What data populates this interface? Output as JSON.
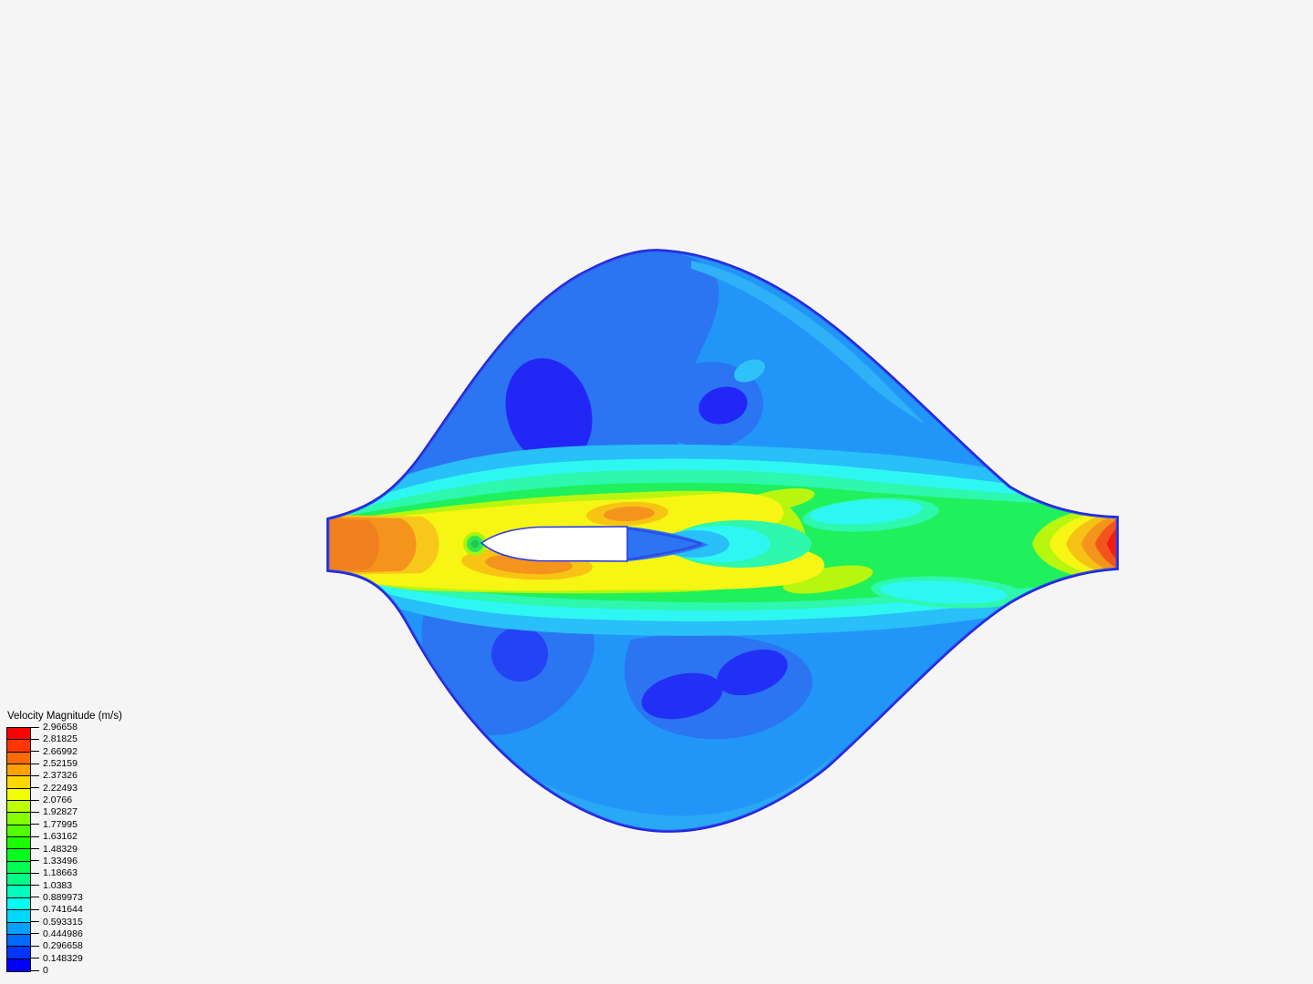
{
  "page": {
    "background_color": "#f5f5f6",
    "kind": "CFD post-processing contour view"
  },
  "legend": {
    "title": "Velocity Magnitude (m/s)",
    "labels_top_to_bottom": [
      "2.96658",
      "2.81825",
      "2.66992",
      "2.52159",
      "2.37326",
      "2.22493",
      "2.0766",
      "1.92827",
      "1.77995",
      "1.63162",
      "1.48329",
      "1.33496",
      "1.18663",
      "1.0383",
      "0.889973",
      "0.741644",
      "0.593315",
      "0.444986",
      "0.296658",
      "0.148329",
      "0"
    ],
    "band_colors_top_to_bottom": [
      "#ff0000",
      "#ff3600",
      "#ff6b00",
      "#ffa100",
      "#ffd700",
      "#f2ff00",
      "#bcff00",
      "#86ff00",
      "#51ff00",
      "#1bff00",
      "#00ff1b",
      "#00ff51",
      "#00ff86",
      "#00ffbc",
      "#00fff2",
      "#00d7ff",
      "#00a1ff",
      "#006bff",
      "#0036ff",
      "#0000ff"
    ]
  },
  "chart_data": {
    "type": "heatmap",
    "title": "Velocity Magnitude (m/s)",
    "units": "m/s",
    "range": {
      "min": 0,
      "max": 2.96658
    },
    "level_step": 0.148329,
    "colorbar_levels_top_to_bottom": [
      2.96658,
      2.81825,
      2.66992,
      2.52159,
      2.37326,
      2.22493,
      2.0766,
      1.92827,
      1.77995,
      1.63162,
      1.48329,
      1.33496,
      1.18663,
      1.0383,
      0.889973,
      0.741644,
      0.593315,
      0.444986,
      0.296658,
      0.148329,
      0
    ],
    "band_colors_top_to_bottom": [
      "#ff0000",
      "#ff3600",
      "#ff6b00",
      "#ffa100",
      "#ffd700",
      "#f2ff00",
      "#bcff00",
      "#86ff00",
      "#51ff00",
      "#1bff00",
      "#00ff1b",
      "#00ff51",
      "#00ff86",
      "#00ffbc",
      "#00fff2",
      "#00d7ff",
      "#00a1ff",
      "#006bff",
      "#0036ff",
      "#0000ff"
    ],
    "legend_position": "bottom-left",
    "grid": false,
    "scene": {
      "description": "Lens-shaped 2D flow domain with narrow rectangular inlet (left) and outlet (right); white flat-backed bullet/airfoil body in the central channel; dark blue domain outline",
      "features": [
        {
          "name": "inlet-jet",
          "approx_velocity_mps": 2.45,
          "color": "#f5941c",
          "location": "left inlet, x~360-470"
        },
        {
          "name": "channel-core-flow",
          "approx_velocity_mps": 2.0,
          "color": "#f7f513",
          "location": "horizontal band y~550-650 across domain"
        },
        {
          "name": "stagnation-point",
          "approx_velocity_mps": 1.4,
          "color": "#2ee658",
          "location": "just upstream of body nose (x~521,y~597)"
        },
        {
          "name": "body-wake",
          "approx_velocity_mps": 0.4,
          "color": "#2c74f2",
          "location": "behind flat base of body (x~688-780)"
        },
        {
          "name": "wake-recovery",
          "approx_velocity_mps": 1.0,
          "color": "#1ff05c",
          "location": "x~850-1130 around centerline"
        },
        {
          "name": "outlet-acceleration",
          "approx_velocity_mps": 2.97,
          "color": "#f01d14",
          "location": "right outlet throat x~1190-1226"
        },
        {
          "name": "upper-lobe-recirculation",
          "approx_velocity_mps": 0.2,
          "color": "#2227f6",
          "location": "blobs at (600,452) and (793,445)"
        },
        {
          "name": "lower-lobe-recirculation",
          "approx_velocity_mps": 0.2,
          "color": "#2227f6",
          "location": "blobs at (572,720) and (745-825,740-765)"
        }
      ]
    }
  }
}
